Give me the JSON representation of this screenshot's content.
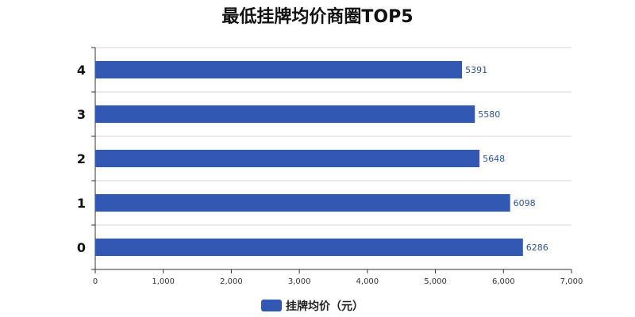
{
  "chart_data": {
    "type": "bar",
    "orientation": "horizontal",
    "title": "最低挂牌均价商圈TOP5",
    "categories": [
      "0",
      "1",
      "2",
      "3",
      "4"
    ],
    "series": [
      {
        "name": "挂牌均价（元）",
        "values": [
          6286,
          6098,
          5648,
          5580,
          5391
        ]
      }
    ],
    "xlim": [
      0,
      7000
    ],
    "xticks": [
      0,
      1000,
      2000,
      3000,
      4000,
      5000,
      6000,
      7000
    ],
    "xtick_labels": [
      "0",
      "1,000",
      "2,000",
      "3,000",
      "4,000",
      "5,000",
      "6,000",
      "7,000"
    ],
    "data_labels": [
      "6286",
      "6098",
      "5648",
      "5580",
      "5391"
    ],
    "grid": true,
    "legend_position": "bottom",
    "colors": {
      "bar": "#3358b4"
    }
  }
}
